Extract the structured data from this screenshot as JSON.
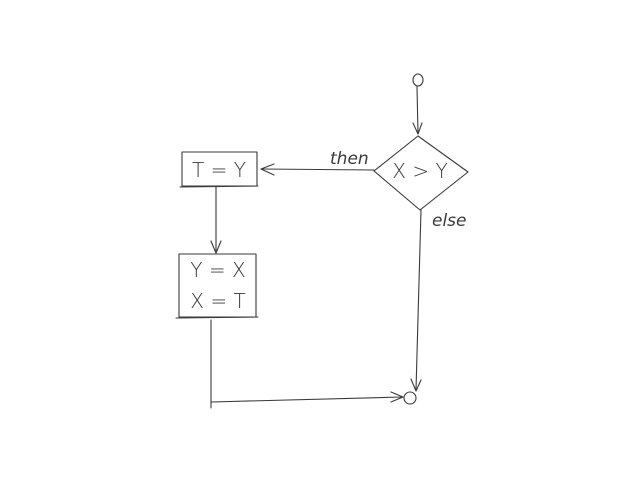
{
  "diagram": {
    "decision": {
      "text": "X > Y"
    },
    "then_label": "then",
    "else_label": "else",
    "assign_t": {
      "text": "T = Y"
    },
    "swap": {
      "line1": "Y = X",
      "line2": "X = T"
    }
  }
}
